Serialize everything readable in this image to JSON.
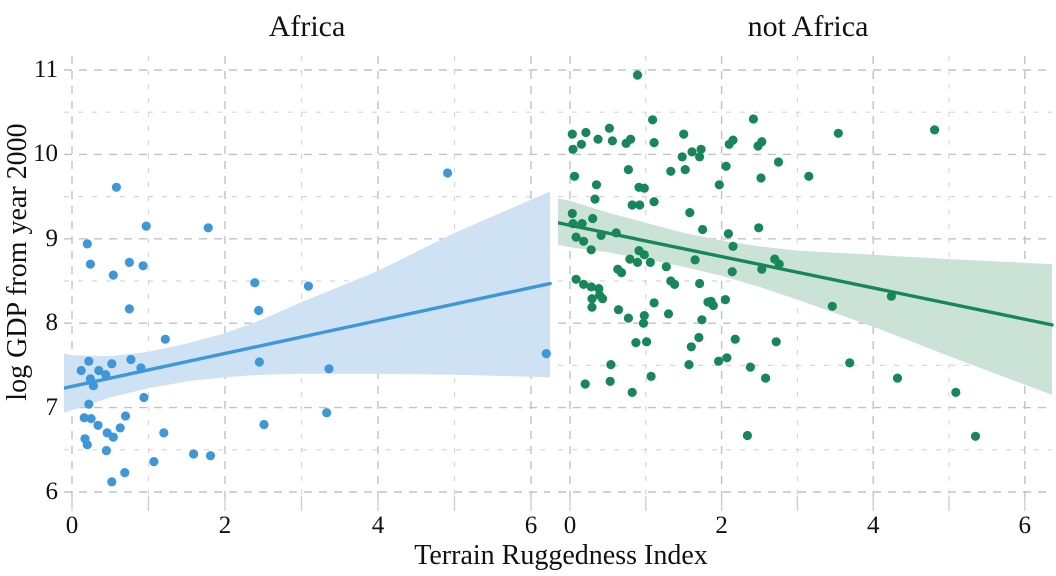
{
  "chart_data": {
    "type": "scatter",
    "xlabel": "Terrain Ruggedness Index",
    "ylabel": "log GDP from year 2000",
    "xticks": [
      0,
      2,
      4,
      6
    ],
    "xticks_minor": [
      1,
      3,
      5
    ],
    "yticks": [
      6,
      7,
      8,
      9,
      10,
      11
    ],
    "yticks_minor": [
      6.5,
      7.5,
      8.5,
      9.5,
      10.5
    ],
    "xlim": [
      -0.11,
      6.3
    ],
    "ylim": [
      5.85,
      11.17
    ],
    "grid": "dashed",
    "grid_major_color": "#c2c2c2",
    "grid_minor_color": "#d7d7d7",
    "panels": [
      {
        "title": "Africa",
        "point_color": "#3E97D8",
        "line_color": "#3E97D8",
        "band_color": "#CFE2F4",
        "regression": {
          "x_start": -0.11,
          "y_start": 7.23,
          "x_end": 6.25,
          "y_end": 8.47
        },
        "band": {
          "x": [
            -0.11,
            0.0,
            0.5,
            1.0,
            1.5,
            2.0,
            2.5,
            3.0,
            4.0,
            5.0,
            6.25
          ],
          "lower": [
            6.94,
            6.97,
            7.12,
            7.23,
            7.31,
            7.36,
            7.39,
            7.4,
            7.4,
            7.39,
            7.36
          ],
          "upper": [
            7.64,
            7.62,
            7.61,
            7.66,
            7.76,
            7.88,
            8.05,
            8.25,
            8.62,
            9.07,
            9.56
          ]
        },
        "points": [
          [
            0.58,
            9.61
          ],
          [
            0.97,
            9.15
          ],
          [
            1.78,
            9.13
          ],
          [
            4.91,
            9.78
          ],
          [
            0.2,
            8.94
          ],
          [
            0.24,
            8.7
          ],
          [
            0.75,
            8.72
          ],
          [
            0.93,
            8.68
          ],
          [
            0.54,
            8.57
          ],
          [
            2.39,
            8.48
          ],
          [
            3.09,
            8.44
          ],
          [
            0.75,
            8.17
          ],
          [
            2.44,
            8.15
          ],
          [
            1.22,
            7.81
          ],
          [
            6.2,
            7.64
          ],
          [
            2.45,
            7.54
          ],
          [
            0.22,
            7.55
          ],
          [
            0.52,
            7.52
          ],
          [
            0.77,
            7.57
          ],
          [
            0.12,
            7.44
          ],
          [
            0.35,
            7.44
          ],
          [
            0.9,
            7.47
          ],
          [
            0.44,
            7.39
          ],
          [
            0.24,
            7.34
          ],
          [
            0.28,
            7.26
          ],
          [
            3.36,
            7.46
          ],
          [
            0.94,
            7.12
          ],
          [
            0.22,
            7.04
          ],
          [
            3.33,
            6.94
          ],
          [
            0.16,
            6.88
          ],
          [
            0.25,
            6.87
          ],
          [
            0.7,
            6.9
          ],
          [
            0.34,
            6.79
          ],
          [
            0.63,
            6.76
          ],
          [
            0.46,
            6.7
          ],
          [
            0.54,
            6.65
          ],
          [
            0.17,
            6.63
          ],
          [
            1.2,
            6.7
          ],
          [
            0.2,
            6.56
          ],
          [
            0.45,
            6.49
          ],
          [
            1.59,
            6.45
          ],
          [
            1.81,
            6.43
          ],
          [
            1.07,
            6.36
          ],
          [
            0.69,
            6.23
          ],
          [
            0.52,
            6.12
          ],
          [
            2.51,
            6.8
          ]
        ]
      },
      {
        "title": "not Africa",
        "point_color": "#17875A",
        "line_color": "#17875A",
        "band_color": "#CBE2D6",
        "regression": {
          "x_start": -0.16,
          "y_start": 9.19,
          "x_end": 6.36,
          "y_end": 7.98
        },
        "band": {
          "x": [
            -0.16,
            0.0,
            0.5,
            1.0,
            1.5,
            2.0,
            2.5,
            3.0,
            4.0,
            5.0,
            6.36
          ],
          "lower": [
            8.93,
            8.9,
            8.84,
            8.76,
            8.67,
            8.56,
            8.43,
            8.28,
            7.96,
            7.61,
            7.15
          ],
          "upper": [
            9.48,
            9.45,
            9.31,
            9.19,
            9.07,
            8.98,
            8.91,
            8.86,
            8.81,
            8.76,
            8.7
          ]
        },
        "points": [
          [
            0.89,
            10.94
          ],
          [
            1.09,
            10.41
          ],
          [
            2.42,
            10.42
          ],
          [
            0.52,
            10.31
          ],
          [
            0.03,
            10.24
          ],
          [
            0.21,
            10.26
          ],
          [
            0.37,
            10.18
          ],
          [
            0.56,
            10.16
          ],
          [
            0.15,
            10.12
          ],
          [
            0.74,
            10.13
          ],
          [
            0.8,
            10.18
          ],
          [
            1.5,
            10.24
          ],
          [
            1.11,
            10.14
          ],
          [
            0.04,
            10.06
          ],
          [
            1.61,
            10.03
          ],
          [
            1.73,
            10.06
          ],
          [
            1.48,
            9.97
          ],
          [
            1.71,
            9.97
          ],
          [
            2.1,
            10.12
          ],
          [
            2.15,
            10.17
          ],
          [
            2.48,
            10.1
          ],
          [
            2.53,
            10.15
          ],
          [
            3.54,
            10.25
          ],
          [
            4.81,
            10.29
          ],
          [
            0.77,
            9.82
          ],
          [
            1.33,
            9.8
          ],
          [
            1.52,
            9.82
          ],
          [
            2.06,
            9.86
          ],
          [
            0.06,
            9.74
          ],
          [
            0.35,
            9.64
          ],
          [
            1.97,
            9.64
          ],
          [
            2.52,
            9.72
          ],
          [
            0.91,
            9.61
          ],
          [
            0.98,
            9.6
          ],
          [
            2.75,
            9.91
          ],
          [
            3.15,
            9.74
          ],
          [
            0.33,
            9.47
          ],
          [
            0.82,
            9.4
          ],
          [
            0.92,
            9.4
          ],
          [
            1.11,
            9.44
          ],
          [
            1.58,
            9.31
          ],
          [
            0.03,
            9.3
          ],
          [
            0.16,
            9.18
          ],
          [
            0.3,
            9.24
          ],
          [
            0.04,
            9.18
          ],
          [
            0.41,
            9.04
          ],
          [
            0.61,
            9.07
          ],
          [
            1.75,
            9.11
          ],
          [
            2.09,
            9.06
          ],
          [
            2.49,
            9.13
          ],
          [
            0.08,
            9.02
          ],
          [
            0.18,
            8.97
          ],
          [
            0.28,
            8.87
          ],
          [
            0.91,
            8.86
          ],
          [
            0.98,
            8.81
          ],
          [
            0.79,
            8.76
          ],
          [
            0.89,
            8.72
          ],
          [
            1.06,
            8.72
          ],
          [
            1.27,
            8.67
          ],
          [
            0.63,
            8.64
          ],
          [
            0.68,
            8.6
          ],
          [
            1.33,
            8.5
          ],
          [
            1.65,
            8.75
          ],
          [
            2.15,
            8.91
          ],
          [
            2.53,
            8.64
          ],
          [
            2.7,
            8.76
          ],
          [
            2.76,
            8.7
          ],
          [
            2.14,
            8.61
          ],
          [
            0.08,
            8.52
          ],
          [
            0.18,
            8.46
          ],
          [
            0.28,
            8.43
          ],
          [
            0.38,
            8.41
          ],
          [
            0.29,
            8.29
          ],
          [
            0.39,
            8.33
          ],
          [
            0.43,
            8.29
          ],
          [
            0.29,
            8.19
          ],
          [
            0.64,
            8.16
          ],
          [
            1.11,
            8.24
          ],
          [
            1.38,
            8.46
          ],
          [
            1.71,
            8.47
          ],
          [
            0.77,
            8.06
          ],
          [
            0.98,
            8.09
          ],
          [
            0.97,
            8.0
          ],
          [
            1.3,
            8.11
          ],
          [
            1.82,
            8.25
          ],
          [
            1.86,
            8.26
          ],
          [
            1.89,
            8.21
          ],
          [
            2.05,
            8.28
          ],
          [
            1.74,
            8.04
          ],
          [
            3.46,
            8.2
          ],
          [
            4.24,
            8.32
          ],
          [
            1.7,
            7.83
          ],
          [
            0.87,
            7.77
          ],
          [
            1.01,
            7.78
          ],
          [
            1.6,
            7.72
          ],
          [
            2.18,
            7.81
          ],
          [
            2.72,
            7.78
          ],
          [
            1.96,
            7.55
          ],
          [
            2.07,
            7.59
          ],
          [
            1.57,
            7.51
          ],
          [
            0.54,
            7.51
          ],
          [
            2.38,
            7.48
          ],
          [
            2.58,
            7.35
          ],
          [
            1.07,
            7.37
          ],
          [
            0.2,
            7.28
          ],
          [
            0.53,
            7.31
          ],
          [
            0.82,
            7.18
          ],
          [
            3.69,
            7.53
          ],
          [
            4.32,
            7.35
          ],
          [
            5.09,
            7.18
          ],
          [
            2.34,
            6.67
          ],
          [
            5.35,
            6.66
          ]
        ]
      }
    ]
  }
}
